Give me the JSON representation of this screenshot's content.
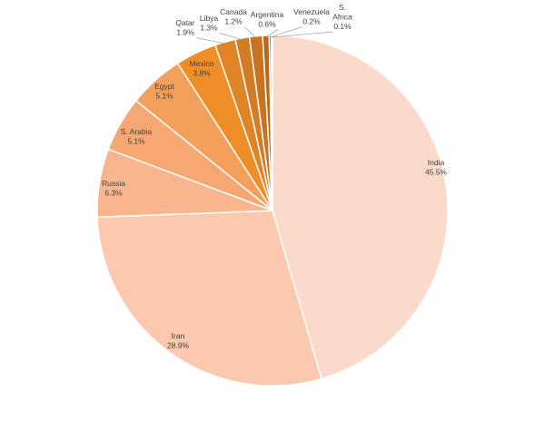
{
  "chart_data": {
    "type": "pie",
    "title": "",
    "slices": [
      {
        "label": "India",
        "value": 45.5,
        "value_label": "45.5%",
        "color": "#fcdacb"
      },
      {
        "label": "Iran",
        "value": 28.9,
        "value_label": "28.9%",
        "color": "#fbc9ad"
      },
      {
        "label": "Russia",
        "value": 6.3,
        "value_label": "6.3%",
        "color": "#f9b58e"
      },
      {
        "label": "S. Arabia",
        "value": 5.1,
        "value_label": "5.1%",
        "color": "#f7a772"
      },
      {
        "label": "Egypt",
        "value": 5.1,
        "value_label": "5.1%",
        "color": "#f4a05d"
      },
      {
        "label": "Mexico",
        "value": 3.8,
        "value_label": "3.8%",
        "color": "#ef8d27"
      },
      {
        "label": "Qatar",
        "value": 1.9,
        "value_label": "1.9%",
        "color": "#e08428"
      },
      {
        "label": "Libya",
        "value": 1.3,
        "value_label": "1.3%",
        "color": "#d47b26"
      },
      {
        "label": "Canada",
        "value": 1.2,
        "value_label": "1.2%",
        "color": "#c97320"
      },
      {
        "label": "Argentina",
        "value": 0.6,
        "value_label": "0.6%",
        "color": "#b86818"
      },
      {
        "label": "Venezuela",
        "value": 0.2,
        "value_label": "0.2%",
        "color": "#a65d14"
      },
      {
        "label": "S. Africa",
        "value": 0.1,
        "value_label": "0.1%",
        "color": "#8f4f10"
      }
    ]
  }
}
